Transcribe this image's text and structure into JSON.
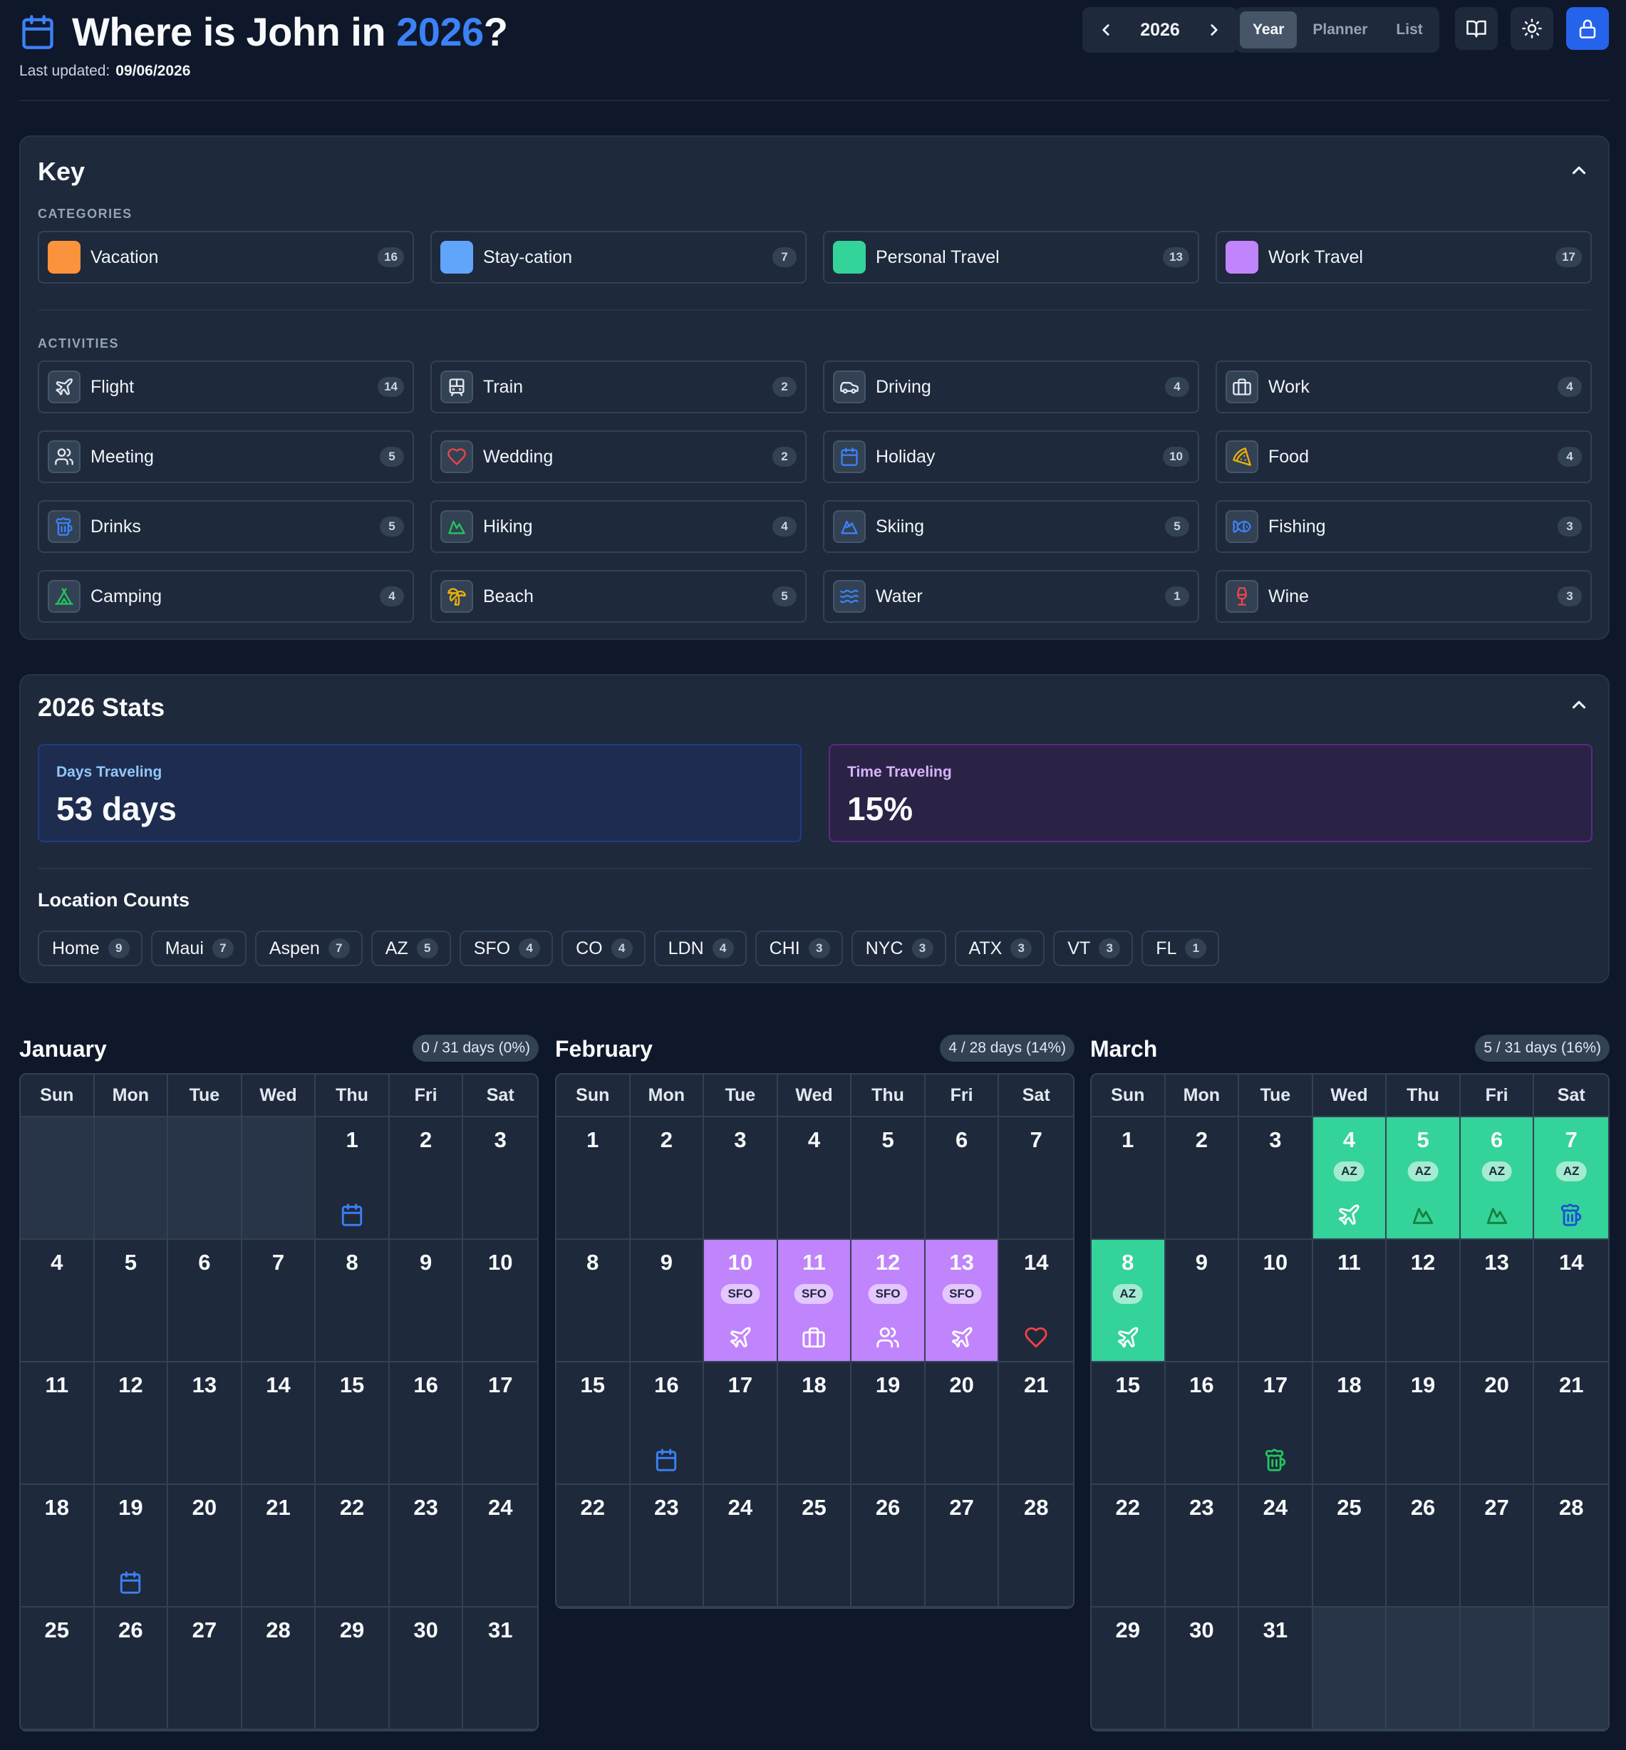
{
  "header": {
    "title_prefix": "Where is John in ",
    "title_year": "2026",
    "title_suffix": "?",
    "updated_label": "Last updated:",
    "updated_value": "09/06/2026",
    "year": "2026",
    "views": [
      "Year",
      "Planner",
      "List"
    ],
    "active_view": "Year"
  },
  "key": {
    "title": "Key",
    "categories_label": "CATEGORIES",
    "categories": [
      {
        "label": "Vacation",
        "count": "16",
        "color": "#fb923c"
      },
      {
        "label": "Stay-cation",
        "count": "7",
        "color": "#60a5fa"
      },
      {
        "label": "Personal Travel",
        "count": "13",
        "color": "#34d399"
      },
      {
        "label": "Work Travel",
        "count": "17",
        "color": "#c084fc"
      }
    ],
    "activities_label": "ACTIVITIES",
    "activities": [
      {
        "label": "Flight",
        "count": "14",
        "icon": "plane-icon"
      },
      {
        "label": "Train",
        "count": "2",
        "icon": "train-icon"
      },
      {
        "label": "Driving",
        "count": "4",
        "icon": "car-icon"
      },
      {
        "label": "Work",
        "count": "4",
        "icon": "briefcase-icon"
      },
      {
        "label": "Meeting",
        "count": "5",
        "icon": "users-icon"
      },
      {
        "label": "Wedding",
        "count": "2",
        "icon": "heart-icon"
      },
      {
        "label": "Holiday",
        "count": "10",
        "icon": "calendar-icon"
      },
      {
        "label": "Food",
        "count": "4",
        "icon": "pizza-icon"
      },
      {
        "label": "Drinks",
        "count": "5",
        "icon": "beer-icon"
      },
      {
        "label": "Hiking",
        "count": "4",
        "icon": "mountain-icon"
      },
      {
        "label": "Skiing",
        "count": "5",
        "icon": "ski-mountain-icon"
      },
      {
        "label": "Fishing",
        "count": "3",
        "icon": "fish-icon"
      },
      {
        "label": "Camping",
        "count": "4",
        "icon": "tent-icon"
      },
      {
        "label": "Beach",
        "count": "5",
        "icon": "palm-tree-icon"
      },
      {
        "label": "Water",
        "count": "1",
        "icon": "waves-icon"
      },
      {
        "label": "Wine",
        "count": "3",
        "icon": "wine-icon"
      }
    ]
  },
  "stats": {
    "title": "2026 Stats",
    "days_label": "Days Traveling",
    "days_value": "53 days",
    "time_label": "Time Traveling",
    "time_value": "15%",
    "locations_title": "Location Counts",
    "locations": [
      {
        "name": "Home",
        "count": "9"
      },
      {
        "name": "Maui",
        "count": "7"
      },
      {
        "name": "Aspen",
        "count": "7"
      },
      {
        "name": "AZ",
        "count": "5"
      },
      {
        "name": "SFO",
        "count": "4"
      },
      {
        "name": "CO",
        "count": "4"
      },
      {
        "name": "LDN",
        "count": "4"
      },
      {
        "name": "CHI",
        "count": "3"
      },
      {
        "name": "NYC",
        "count": "3"
      },
      {
        "name": "ATX",
        "count": "3"
      },
      {
        "name": "VT",
        "count": "3"
      },
      {
        "name": "FL",
        "count": "1"
      }
    ]
  },
  "weekdays": [
    "Sun",
    "Mon",
    "Tue",
    "Wed",
    "Thu",
    "Fri",
    "Sat"
  ],
  "months": [
    {
      "name": "January",
      "stat": "0 / 31 days (0%)",
      "start": 4,
      "days": 31,
      "events": {
        "1": {
          "icon": "calendar"
        },
        "19": {
          "icon": "calendar"
        }
      }
    },
    {
      "name": "February",
      "stat": "4 / 28 days (14%)",
      "start": 0,
      "days": 28,
      "events": {
        "10": {
          "color": "purple",
          "loc": "SFO",
          "icon": "plane"
        },
        "11": {
          "color": "purple",
          "loc": "SFO",
          "icon": "briefcase"
        },
        "12": {
          "color": "purple",
          "loc": "SFO",
          "icon": "users"
        },
        "13": {
          "color": "purple",
          "loc": "SFO",
          "icon": "plane"
        },
        "14": {
          "icon": "heart"
        },
        "16": {
          "icon": "calendar"
        }
      }
    },
    {
      "name": "March",
      "stat": "5 / 31 days (16%)",
      "start": 0,
      "days": 31,
      "events": {
        "4": {
          "color": "green",
          "loc": "AZ",
          "icon": "plane"
        },
        "5": {
          "color": "green",
          "loc": "AZ",
          "icon": "mountain"
        },
        "6": {
          "color": "green",
          "loc": "AZ",
          "icon": "mountain"
        },
        "7": {
          "color": "green",
          "loc": "AZ",
          "icon": "beer"
        },
        "8": {
          "color": "green",
          "loc": "AZ",
          "icon": "plane"
        },
        "17": {
          "icon": "beer-green"
        }
      }
    }
  ]
}
